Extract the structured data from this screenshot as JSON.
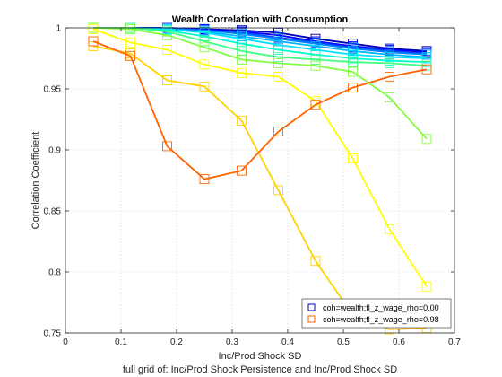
{
  "chart_data": {
    "type": "line",
    "title": "Wealth Correlation with Consumption",
    "xlabel": "Inc/Prod Shock SD",
    "ylabel": "Correlation Coefficient",
    "footer": "full grid of: Inc/Prod Shock Persistence and Inc/Prod Shock SD",
    "xlim": [
      0,
      0.7
    ],
    "ylim": [
      0.75,
      1.0
    ],
    "xticks": [
      "0",
      "0.1",
      "0.2",
      "0.3",
      "0.4",
      "0.5",
      "0.6",
      "0.7"
    ],
    "yticks": [
      "0.75",
      "0.8",
      "0.85",
      "0.9",
      "0.95",
      "1"
    ],
    "grid": true,
    "legend_position": "bottom-right",
    "x": [
      0.05,
      0.117,
      0.183,
      0.25,
      0.317,
      0.383,
      0.45,
      0.517,
      0.583,
      0.65
    ],
    "series": [
      {
        "name": "coh=wealth;fl_z_wage_rho=0.00",
        "color": "#0000b4",
        "values": [
          1.0,
          1.0,
          1.0,
          0.999,
          0.998,
          0.996,
          0.991,
          0.987,
          0.983,
          0.981
        ]
      },
      {
        "color": "#0000ff",
        "values": [
          1.0,
          1.0,
          1.0,
          0.999,
          0.997,
          0.994,
          0.989,
          0.985,
          0.982,
          0.98
        ]
      },
      {
        "color": "#0044ff",
        "values": [
          1.0,
          1.0,
          1.0,
          0.998,
          0.996,
          0.992,
          0.988,
          0.984,
          0.981,
          0.979
        ]
      },
      {
        "color": "#0080ff",
        "values": [
          1.0,
          1.0,
          0.999,
          0.998,
          0.995,
          0.991,
          0.987,
          0.983,
          0.98,
          0.978
        ]
      },
      {
        "color": "#00b4ff",
        "values": [
          1.0,
          1.0,
          0.999,
          0.997,
          0.993,
          0.989,
          0.985,
          0.981,
          0.978,
          0.976
        ]
      },
      {
        "color": "#00e0ff",
        "values": [
          1.0,
          1.0,
          0.999,
          0.996,
          0.991,
          0.986,
          0.982,
          0.978,
          0.976,
          0.975
        ]
      },
      {
        "color": "#00ffcc",
        "values": [
          1.0,
          1.0,
          0.998,
          0.993,
          0.987,
          0.982,
          0.978,
          0.975,
          0.973,
          0.972
        ]
      },
      {
        "color": "#40ff80",
        "values": [
          1.0,
          1.0,
          0.997,
          0.989,
          0.981,
          0.976,
          0.974,
          0.972,
          0.971,
          0.969
        ]
      },
      {
        "color": "#80ff40",
        "values": [
          1.0,
          0.999,
          0.994,
          0.984,
          0.974,
          0.971,
          0.969,
          0.964,
          0.943,
          0.909
        ]
      },
      {
        "color": "#ffff00",
        "values": [
          0.999,
          0.988,
          0.982,
          0.97,
          0.963,
          0.96,
          0.94,
          0.893,
          0.835,
          0.788
        ]
      },
      {
        "color": "#ffd200",
        "values": [
          0.985,
          0.979,
          0.957,
          0.952,
          0.924,
          0.867,
          0.809,
          0.765,
          0.753,
          0.754
        ]
      },
      {
        "name": "coh=wealth;fl_z_wage_rho=0.98",
        "color": "#ff6400",
        "values": [
          0.989,
          0.977,
          0.903,
          0.876,
          0.883,
          0.915,
          0.937,
          0.951,
          0.96,
          0.966
        ]
      }
    ]
  }
}
